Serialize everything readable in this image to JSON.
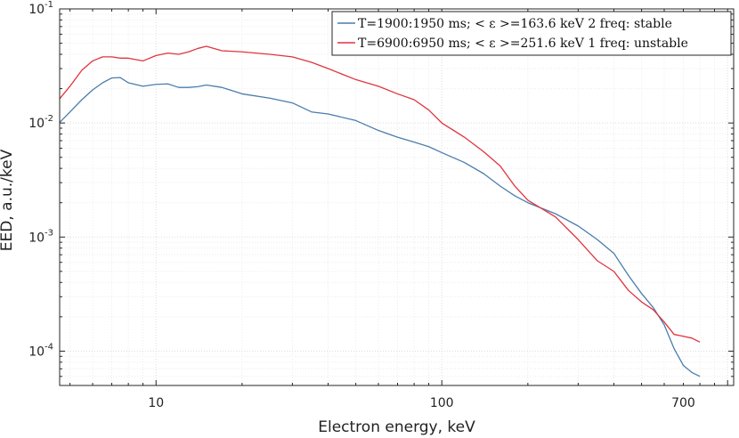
{
  "chart_data": {
    "type": "line",
    "xscale": "log",
    "yscale": "log",
    "xlim": [
      4.6,
      1050
    ],
    "ylim": [
      5e-05,
      0.1
    ],
    "xlabel": "Electron energy, keV",
    "ylabel": "EED, a.u./keV",
    "x_ticks": [
      {
        "value": 10,
        "label": "10"
      },
      {
        "value": 100,
        "label": "100"
      },
      {
        "value": 700,
        "label": "700"
      }
    ],
    "y_ticks": [
      {
        "value": 0.1,
        "base": "10",
        "exp": "-1"
      },
      {
        "value": 0.01,
        "base": "10",
        "exp": "-2"
      },
      {
        "value": 0.001,
        "base": "10",
        "exp": "-3"
      },
      {
        "value": 0.0001,
        "base": "10",
        "exp": "-4"
      }
    ],
    "grid": true,
    "legend_position": "top-right",
    "series": [
      {
        "name": "T=1900:1950 ms; < ε >=163.6 keV 2 freq: stable",
        "color": "#4a7dab",
        "x": [
          4.6,
          5.0,
          5.5,
          6.0,
          6.5,
          7.0,
          7.5,
          8.0,
          9.0,
          10.0,
          11.0,
          12.0,
          13.0,
          14.0,
          15.0,
          17.0,
          20.0,
          25.0,
          30.0,
          35.0,
          40.0,
          50.0,
          60.0,
          70.0,
          80.0,
          90.0,
          100.0,
          120.0,
          140.0,
          160.0,
          180.0,
          200.0,
          250.0,
          300.0,
          350.0,
          400.0,
          450.0,
          500.0,
          550.0,
          600.0,
          650.0,
          700.0,
          750.0,
          800.0
        ],
        "y": [
          0.0101,
          0.0125,
          0.016,
          0.0195,
          0.0225,
          0.0248,
          0.025,
          0.0225,
          0.021,
          0.0218,
          0.022,
          0.0205,
          0.0205,
          0.0208,
          0.0215,
          0.0205,
          0.018,
          0.0165,
          0.015,
          0.0125,
          0.012,
          0.0105,
          0.0086,
          0.0075,
          0.0068,
          0.0062,
          0.0055,
          0.0045,
          0.0036,
          0.0028,
          0.0023,
          0.002,
          0.0016,
          0.00125,
          0.00095,
          0.00072,
          0.00046,
          0.00032,
          0.00024,
          0.00017,
          0.000105,
          7.5e-05,
          6.5e-05,
          6e-05
        ]
      },
      {
        "name": "T=6900:6950 ms; < ε >=251.6 keV 1 freq: unstable",
        "color": "#e0343e",
        "x": [
          4.6,
          5.0,
          5.5,
          6.0,
          6.5,
          7.0,
          7.5,
          8.0,
          9.0,
          10.0,
          11.0,
          12.0,
          13.0,
          14.0,
          15.0,
          17.0,
          20.0,
          25.0,
          30.0,
          35.0,
          40.0,
          50.0,
          60.0,
          70.0,
          80.0,
          90.0,
          100.0,
          120.0,
          140.0,
          160.0,
          180.0,
          200.0,
          250.0,
          300.0,
          350.0,
          400.0,
          450.0,
          500.0,
          550.0,
          600.0,
          650.0,
          700.0,
          750.0,
          800.0
        ],
        "y": [
          0.0163,
          0.021,
          0.029,
          0.035,
          0.038,
          0.038,
          0.037,
          0.037,
          0.035,
          0.039,
          0.041,
          0.04,
          0.042,
          0.045,
          0.047,
          0.043,
          0.042,
          0.04,
          0.038,
          0.034,
          0.03,
          0.024,
          0.021,
          0.018,
          0.016,
          0.013,
          0.01,
          0.0075,
          0.0056,
          0.0042,
          0.0028,
          0.0021,
          0.0015,
          0.00095,
          0.00062,
          0.0005,
          0.00034,
          0.00027,
          0.00023,
          0.00018,
          0.00014,
          0.000135,
          0.00013,
          0.00012
        ]
      }
    ]
  }
}
